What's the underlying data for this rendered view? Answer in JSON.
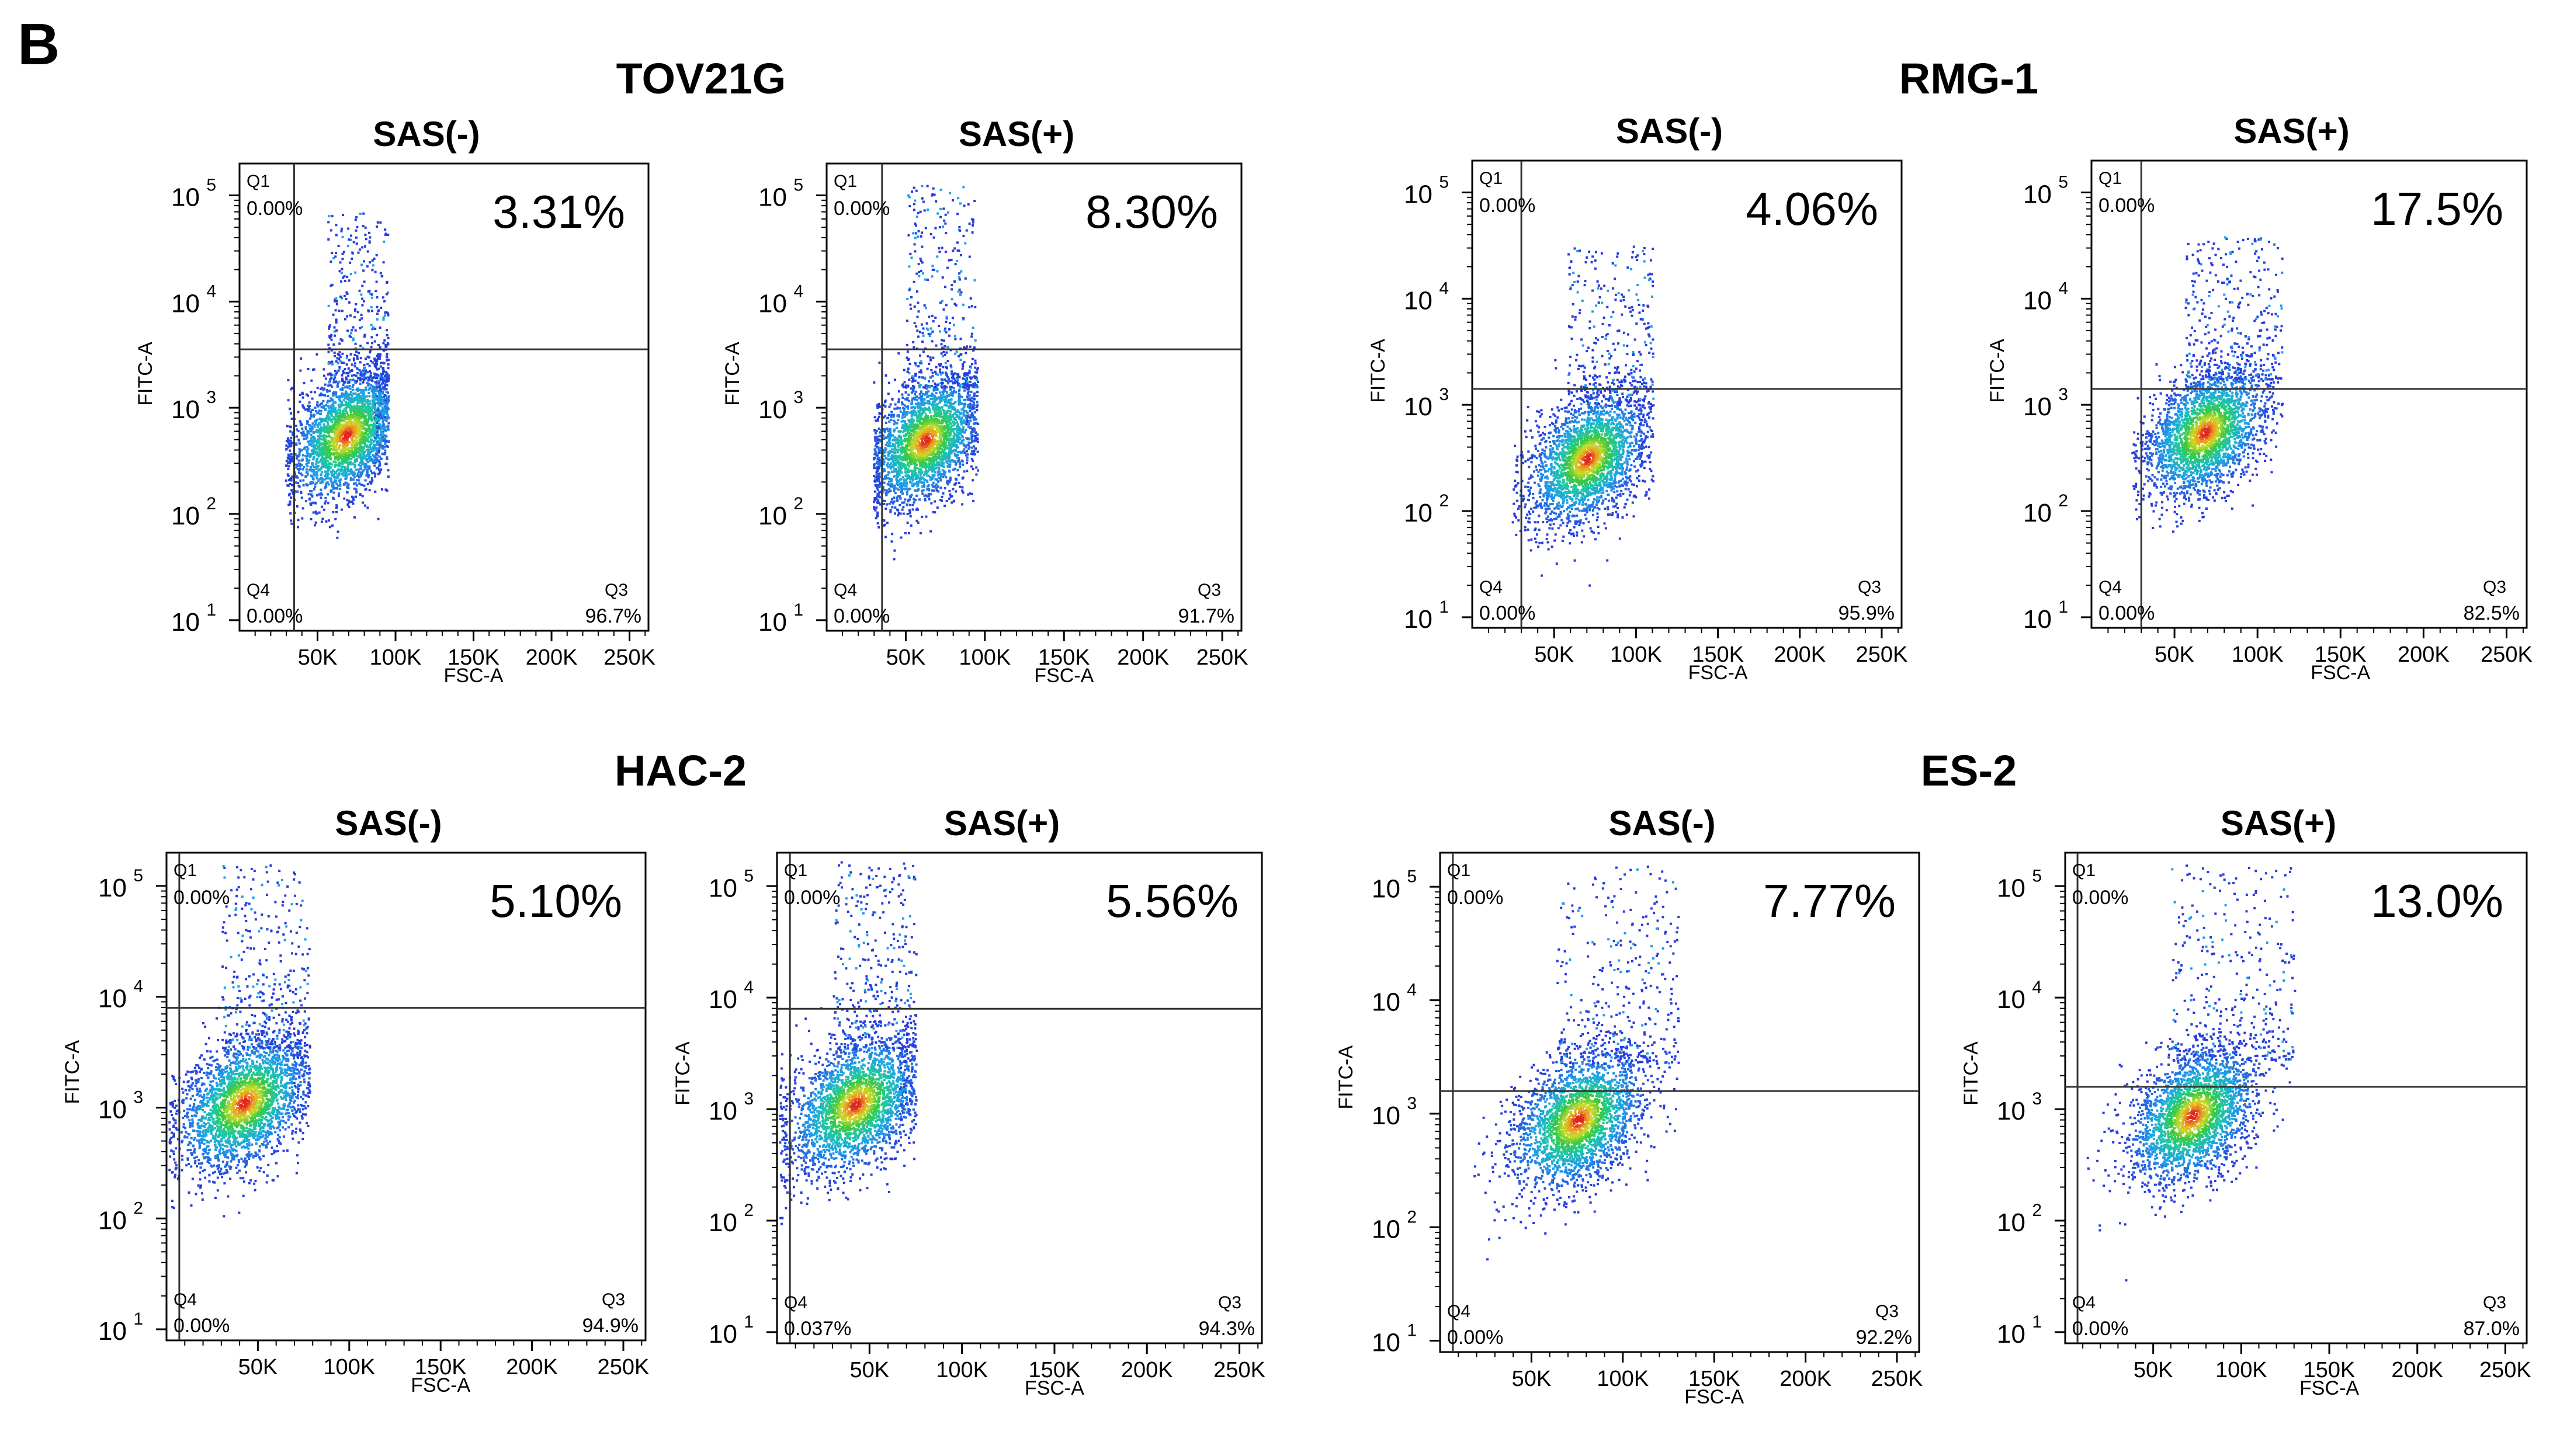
{
  "panel_letter": "B",
  "chart_data": [
    {
      "type": "scatter",
      "cell_line": "TOV21G",
      "condition": "SAS(-)",
      "xlabel": "FSC-A",
      "ylabel": "FITC-A",
      "x_ticks": [
        "50K",
        "100K",
        "150K",
        "200K",
        "250K"
      ],
      "x_tick_values": [
        50000,
        100000,
        150000,
        200000,
        250000
      ],
      "xlim": [
        0,
        262144
      ],
      "y_ticks": [
        "10",
        "10",
        "10",
        "10",
        "10"
      ],
      "y_tick_exponents": [
        "1",
        "2",
        "3",
        "4",
        "5"
      ],
      "ylim_log10": [
        0.9,
        5.3
      ],
      "gate_x": 35000,
      "gate_y_log10": 3.55,
      "highlight_percent": "3.31%",
      "quadrants": {
        "Q1": "0.00%",
        "Q3": "96.7%",
        "Q4": "0.00%"
      },
      "q_names": [
        "Q1",
        "Q3",
        "Q4"
      ],
      "population": {
        "center_x": 68000,
        "center_y_log10": 2.75,
        "upper_tail_x_max": 95000,
        "upper_tail_y_max_log10": 4.85
      }
    },
    {
      "type": "scatter",
      "cell_line": "TOV21G",
      "condition": "SAS(+)",
      "xlabel": "FSC-A",
      "ylabel": "FITC-A",
      "x_ticks": [
        "50K",
        "100K",
        "150K",
        "200K",
        "250K"
      ],
      "x_tick_values": [
        50000,
        100000,
        150000,
        200000,
        250000
      ],
      "xlim": [
        0,
        262144
      ],
      "y_ticks": [
        "10",
        "10",
        "10",
        "10",
        "10"
      ],
      "y_tick_exponents": [
        "1",
        "2",
        "3",
        "4",
        "5"
      ],
      "ylim_log10": [
        0.9,
        5.3
      ],
      "gate_x": 35000,
      "gate_y_log10": 3.55,
      "highlight_percent": "8.30%",
      "quadrants": {
        "Q1": "0.00%",
        "Q3": "91.7%",
        "Q4": "0.00%"
      },
      "q_names": [
        "Q1",
        "Q3",
        "Q4"
      ],
      "population": {
        "center_x": 62000,
        "center_y_log10": 2.7,
        "upper_tail_x_max": 95000,
        "upper_tail_y_max_log10": 5.1
      }
    },
    {
      "type": "scatter",
      "cell_line": "RMG-1",
      "condition": "SAS(-)",
      "xlabel": "FSC-A",
      "ylabel": "FITC-A",
      "x_ticks": [
        "50K",
        "100K",
        "150K",
        "200K",
        "250K"
      ],
      "x_tick_values": [
        50000,
        100000,
        150000,
        200000,
        250000
      ],
      "xlim": [
        0,
        262144
      ],
      "y_ticks": [
        "10",
        "10",
        "10",
        "10",
        "10"
      ],
      "y_tick_exponents": [
        "1",
        "2",
        "3",
        "4",
        "5"
      ],
      "ylim_log10": [
        0.9,
        5.3
      ],
      "gate_x": 30000,
      "gate_y_log10": 3.15,
      "highlight_percent": "4.06%",
      "quadrants": {
        "Q1": "0.00%",
        "Q3": "95.9%",
        "Q4": "0.00%"
      },
      "q_names": [
        "Q1",
        "Q3",
        "Q4"
      ],
      "population": {
        "center_x": 70000,
        "center_y_log10": 2.5,
        "upper_tail_x_max": 110000,
        "upper_tail_y_max_log10": 4.5
      }
    },
    {
      "type": "scatter",
      "cell_line": "RMG-1",
      "condition": "SAS(+)",
      "xlabel": "FSC-A",
      "ylabel": "FITC-A",
      "x_ticks": [
        "50K",
        "100K",
        "150K",
        "200K",
        "250K"
      ],
      "x_tick_values": [
        50000,
        100000,
        150000,
        200000,
        250000
      ],
      "xlim": [
        0,
        262144
      ],
      "y_ticks": [
        "10",
        "10",
        "10",
        "10",
        "10"
      ],
      "y_tick_exponents": [
        "1",
        "2",
        "3",
        "4",
        "5"
      ],
      "ylim_log10": [
        0.9,
        5.3
      ],
      "gate_x": 30000,
      "gate_y_log10": 3.15,
      "highlight_percent": "17.5%",
      "quadrants": {
        "Q1": "0.00%",
        "Q3": "82.5%",
        "Q4": "0.00%"
      },
      "q_names": [
        "Q1",
        "Q3",
        "Q4"
      ],
      "population": {
        "center_x": 68000,
        "center_y_log10": 2.75,
        "upper_tail_x_max": 115000,
        "upper_tail_y_max_log10": 4.6
      }
    },
    {
      "type": "scatter",
      "cell_line": "HAC-2",
      "condition": "SAS(-)",
      "xlabel": "FSC-A",
      "ylabel": "FITC-A",
      "x_ticks": [
        "50K",
        "100K",
        "150K",
        "200K",
        "250K"
      ],
      "x_tick_values": [
        50000,
        100000,
        150000,
        200000,
        250000
      ],
      "xlim": [
        0,
        262144
      ],
      "y_ticks": [
        "10",
        "10",
        "10",
        "10",
        "10"
      ],
      "y_tick_exponents": [
        "1",
        "2",
        "3",
        "4",
        "5"
      ],
      "ylim_log10": [
        0.9,
        5.3
      ],
      "gate_x": 7000,
      "gate_y_log10": 3.9,
      "highlight_percent": "5.10%",
      "quadrants": {
        "Q1": "0.00%",
        "Q3": "94.9%",
        "Q4": "0.00%"
      },
      "q_names": [
        "Q1",
        "Q3",
        "Q4"
      ],
      "population": {
        "center_x": 42000,
        "center_y_log10": 3.05,
        "upper_tail_x_max": 78000,
        "upper_tail_y_max_log10": 5.2
      }
    },
    {
      "type": "scatter",
      "cell_line": "HAC-2",
      "condition": "SAS(+)",
      "xlabel": "FSC-A",
      "ylabel": "FITC-A",
      "x_ticks": [
        "50K",
        "100K",
        "150K",
        "200K",
        "250K"
      ],
      "x_tick_values": [
        50000,
        100000,
        150000,
        200000,
        250000
      ],
      "xlim": [
        0,
        262144
      ],
      "y_ticks": [
        "10",
        "10",
        "10",
        "10",
        "10"
      ],
      "y_tick_exponents": [
        "1",
        "2",
        "3",
        "4",
        "5"
      ],
      "ylim_log10": [
        0.9,
        5.3
      ],
      "gate_x": 7000,
      "gate_y_log10": 3.9,
      "highlight_percent": "5.56%",
      "quadrants": {
        "Q1": "0.00%",
        "Q3": "94.3%",
        "Q4": "0.037%"
      },
      "q_names": [
        "Q1",
        "Q3",
        "Q4"
      ],
      "population": {
        "center_x": 42000,
        "center_y_log10": 3.05,
        "upper_tail_x_max": 75000,
        "upper_tail_y_max_log10": 5.25
      }
    },
    {
      "type": "scatter",
      "cell_line": "ES-2",
      "condition": "SAS(-)",
      "xlabel": "FSC-A",
      "ylabel": "FITC-A",
      "x_ticks": [
        "50K",
        "100K",
        "150K",
        "200K",
        "250K"
      ],
      "x_tick_values": [
        50000,
        100000,
        150000,
        200000,
        250000
      ],
      "xlim": [
        0,
        262144
      ],
      "y_ticks": [
        "10",
        "10",
        "10",
        "10",
        "10"
      ],
      "y_tick_exponents": [
        "1",
        "2",
        "3",
        "4",
        "5"
      ],
      "ylim_log10": [
        0.9,
        5.3
      ],
      "gate_x": 7000,
      "gate_y_log10": 3.2,
      "highlight_percent": "7.77%",
      "quadrants": {
        "Q1": "0.00%",
        "Q3": "92.2%",
        "Q4": "0.00%"
      },
      "q_names": [
        "Q1",
        "Q3",
        "Q4"
      ],
      "population": {
        "center_x": 75000,
        "center_y_log10": 2.95,
        "upper_tail_x_max": 130000,
        "upper_tail_y_max_log10": 5.2
      }
    },
    {
      "type": "scatter",
      "cell_line": "ES-2",
      "condition": "SAS(+)",
      "xlabel": "FSC-A",
      "ylabel": "FITC-A",
      "x_ticks": [
        "50K",
        "100K",
        "150K",
        "200K",
        "250K"
      ],
      "x_tick_values": [
        50000,
        100000,
        150000,
        200000,
        250000
      ],
      "xlim": [
        0,
        262144
      ],
      "y_ticks": [
        "10",
        "10",
        "10",
        "10",
        "10"
      ],
      "y_tick_exponents": [
        "1",
        "2",
        "3",
        "4",
        "5"
      ],
      "ylim_log10": [
        0.9,
        5.3
      ],
      "gate_x": 7000,
      "gate_y_log10": 3.2,
      "highlight_percent": "13.0%",
      "quadrants": {
        "Q1": "0.00%",
        "Q3": "87.0%",
        "Q4": "0.00%"
      },
      "q_names": [
        "Q1",
        "Q3",
        "Q4"
      ],
      "population": {
        "center_x": 72000,
        "center_y_log10": 2.95,
        "upper_tail_x_max": 130000,
        "upper_tail_y_max_log10": 5.2
      }
    }
  ]
}
